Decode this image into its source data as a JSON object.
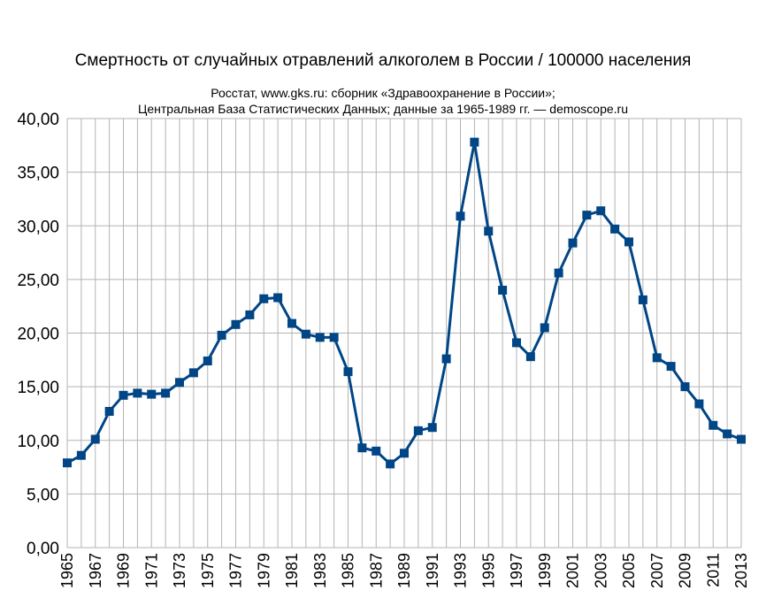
{
  "chart_data": {
    "type": "line",
    "title": "Смертность от случайных отравлений алкоголем в России / 100000 населения",
    "subtitle_lines": [
      "Росстат, www.gks.ru: сборник «Здравоохранение в России»;",
      "Центральная База Статистических Данных;  данные за 1965-1989 гг. — demoscope.ru"
    ],
    "xlabel": "",
    "ylabel": "",
    "ylim": [
      0,
      40
    ],
    "yticks": [
      "0,00",
      "5,00",
      "10,00",
      "15,00",
      "20,00",
      "25,00",
      "30,00",
      "35,00",
      "40,00"
    ],
    "xtick_labels": [
      "1965",
      "1967",
      "1969",
      "1971",
      "1973",
      "1975",
      "1977",
      "1979",
      "1981",
      "1983",
      "1985",
      "1987",
      "1989",
      "1991",
      "1993",
      "1995",
      "1997",
      "1999",
      "2001",
      "2003",
      "2005",
      "2007",
      "2009",
      "2011",
      "2013"
    ],
    "grid": true,
    "color": "#004586",
    "x": [
      1965,
      1966,
      1967,
      1968,
      1969,
      1970,
      1971,
      1972,
      1973,
      1974,
      1975,
      1976,
      1977,
      1978,
      1979,
      1980,
      1981,
      1982,
      1983,
      1984,
      1985,
      1986,
      1987,
      1988,
      1989,
      1990,
      1991,
      1992,
      1993,
      1994,
      1995,
      1996,
      1997,
      1998,
      1999,
      2000,
      2001,
      2002,
      2003,
      2004,
      2005,
      2006,
      2007,
      2008,
      2009,
      2010,
      2011,
      2012,
      2013
    ],
    "values": [
      7.9,
      8.6,
      10.1,
      12.7,
      14.2,
      14.4,
      14.3,
      14.4,
      15.4,
      16.3,
      17.4,
      19.8,
      20.8,
      21.7,
      23.2,
      23.3,
      20.9,
      19.9,
      19.6,
      19.6,
      16.4,
      9.3,
      9.0,
      7.8,
      8.8,
      10.9,
      11.2,
      17.6,
      30.9,
      37.8,
      29.5,
      24.0,
      19.1,
      17.8,
      20.5,
      25.6,
      28.4,
      31.0,
      31.4,
      29.7,
      28.5,
      23.1,
      17.7,
      16.9,
      15.0,
      13.4,
      11.4,
      10.6,
      10.1
    ]
  }
}
